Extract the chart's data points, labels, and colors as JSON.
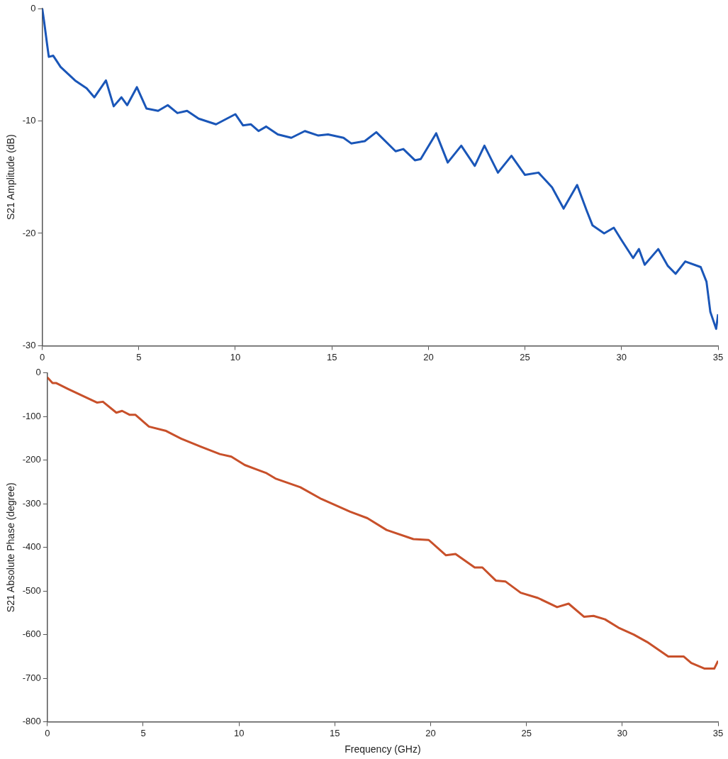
{
  "chart_data": [
    {
      "type": "line",
      "ylabel": "S21 Amplitude (dB)",
      "color": "#1a56b8",
      "x": [
        0,
        0.1,
        0.26,
        0.34,
        0.57,
        0.95,
        1.7,
        2.3,
        2.7,
        3.3,
        3.7,
        4.1,
        4.4,
        4.9,
        5.4,
        6.0,
        6.5,
        7.0,
        7.5,
        8.1,
        9.0,
        10.0,
        10.4,
        10.8,
        11.2,
        11.6,
        12.2,
        12.9,
        13.6,
        14.3,
        14.8,
        15.6,
        16.0,
        16.7,
        17.3,
        18.3,
        18.7,
        19.3,
        19.6,
        20.4,
        21.0,
        21.7,
        22.4,
        22.9,
        23.6,
        24.3,
        25.0,
        25.7,
        26.4,
        27.0,
        27.7,
        28.2,
        28.5,
        29.1,
        29.6,
        30.0,
        30.6,
        30.9,
        31.2,
        31.9,
        32.4,
        32.8,
        33.3,
        34.1,
        34.4,
        34.6,
        34.9,
        35
      ],
      "values": [
        0,
        -1.2,
        -3.3,
        -4.3,
        -4.2,
        -5.2,
        -6.4,
        -7.1,
        -7.9,
        -6.4,
        -8.7,
        -7.9,
        -8.6,
        -7.0,
        -8.9,
        -9.1,
        -8.6,
        -9.3,
        -9.1,
        -9.8,
        -10.3,
        -9.4,
        -10.4,
        -10.3,
        -10.9,
        -10.5,
        -11.2,
        -11.5,
        -10.9,
        -11.3,
        -11.2,
        -11.5,
        -12.0,
        -11.8,
        -11.0,
        -12.7,
        -12.5,
        -13.5,
        -13.4,
        -11.1,
        -13.7,
        -12.2,
        -14.0,
        -12.2,
        -14.6,
        -13.1,
        -14.8,
        -14.6,
        -15.9,
        -17.8,
        -15.7,
        -18.0,
        -19.3,
        -20.0,
        -19.5,
        -20.6,
        -22.2,
        -21.4,
        -22.8,
        -21.4,
        -22.9,
        -23.6,
        -22.5,
        -23.0,
        -24.3,
        -27.0,
        -28.5,
        -27.2
      ],
      "xlim": [
        0,
        35
      ],
      "xticks": [
        0,
        5,
        10,
        15,
        20,
        25,
        30,
        35
      ],
      "ylim": [
        -30,
        0
      ],
      "yticks": [
        0,
        -10,
        -20,
        -30
      ]
    },
    {
      "type": "line",
      "xlabel": "Frequency (GHz)",
      "ylabel": "S21 Absolute Phase (degree)",
      "color": "#c8502a",
      "x": [
        0,
        0.27,
        0.45,
        1.1,
        2.6,
        2.9,
        3.6,
        3.9,
        4.3,
        4.6,
        5.3,
        6.2,
        7.0,
        8.0,
        9.0,
        9.6,
        10.3,
        10.9,
        11.4,
        11.9,
        13.2,
        14.3,
        15.8,
        16.7,
        17.7,
        19.1,
        19.9,
        20.8,
        21.3,
        22.3,
        22.7,
        23.4,
        23.9,
        24.7,
        25.6,
        26.6,
        27.2,
        28.0,
        28.5,
        29.1,
        29.8,
        30.6,
        31.3,
        32.4,
        33.2,
        33.6,
        34.3,
        34.8,
        35.0
      ],
      "values": [
        -10,
        -23,
        -23,
        -37,
        -68,
        -66,
        -91,
        -87,
        -96,
        -96,
        -123,
        -133,
        -151,
        -169,
        -186,
        -192,
        -211,
        -221,
        -229,
        -242,
        -262,
        -289,
        -318,
        -333,
        -360,
        -381,
        -383,
        -418,
        -415,
        -446,
        -446,
        -476,
        -478,
        -504,
        -516,
        -537,
        -529,
        -559,
        -557,
        -565,
        -584,
        -600,
        -617,
        -650,
        -650,
        -665,
        -678,
        -678,
        -660
      ],
      "xlim": [
        0,
        35
      ],
      "xticks": [
        0,
        5,
        10,
        15,
        20,
        25,
        30,
        35
      ],
      "ylim": [
        -800,
        0
      ],
      "yticks": [
        0,
        -100,
        -200,
        -300,
        -400,
        -500,
        -600,
        -700,
        -800
      ]
    }
  ]
}
